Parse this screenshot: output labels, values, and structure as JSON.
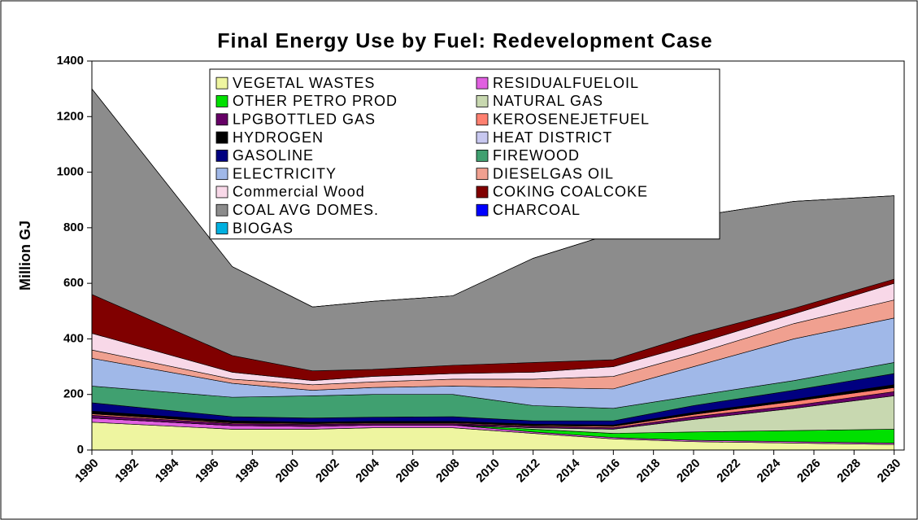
{
  "chart_data": {
    "type": "stacked-area",
    "title": "Final Energy Use by Fuel: Redevelopment Case",
    "y_label": "Million GJ",
    "x": [
      1990,
      1997,
      2001,
      2004,
      2008,
      2012,
      2016,
      2020,
      2025,
      2030
    ],
    "xlim": [
      1990,
      2030.5
    ],
    "xticks": [
      1990,
      1992,
      1994,
      1996,
      1998,
      2000,
      2002,
      2004,
      2006,
      2008,
      2010,
      2012,
      2014,
      2016,
      2018,
      2020,
      2022,
      2024,
      2026,
      2028,
      2030
    ],
    "ylim": [
      0,
      1400
    ],
    "yticks": [
      0,
      200,
      400,
      600,
      800,
      1000,
      1200,
      1400
    ],
    "series": [
      {
        "name": "VEGETAL WASTES",
        "color": "#eef5a0",
        "values": [
          100,
          75,
          75,
          80,
          80,
          60,
          40,
          30,
          25,
          20
        ]
      },
      {
        "name": "RESIDUALFUELOIL",
        "color": "#e060e0",
        "values": [
          15,
          13,
          10,
          10,
          10,
          5,
          5,
          5,
          5,
          5
        ]
      },
      {
        "name": "OTHER PETRO PROD",
        "color": "#00e000",
        "values": [
          0,
          0,
          0,
          0,
          0,
          10,
          15,
          30,
          40,
          50
        ]
      },
      {
        "name": "NATURAL GAS",
        "color": "#c8d8b0",
        "values": [
          0,
          0,
          0,
          0,
          0,
          5,
          15,
          45,
          80,
          120
        ]
      },
      {
        "name": "LPGBOTTLED GAS",
        "color": "#660066",
        "values": [
          10,
          7,
          7,
          5,
          5,
          5,
          5,
          10,
          10,
          15
        ]
      },
      {
        "name": "KEROSENEJETFUEL",
        "color": "#ff8070",
        "values": [
          5,
          3,
          3,
          3,
          3,
          3,
          5,
          8,
          15,
          15
        ]
      },
      {
        "name": "HYDROGEN",
        "color": "#000000",
        "values": [
          10,
          7,
          5,
          5,
          5,
          5,
          5,
          7,
          7,
          10
        ]
      },
      {
        "name": "HEAT DISTRICT",
        "color": "#c8c8f0",
        "values": [
          0,
          0,
          0,
          0,
          0,
          0,
          0,
          0,
          0,
          0
        ]
      },
      {
        "name": "GASOLINE",
        "color": "#000080",
        "values": [
          30,
          15,
          15,
          15,
          17,
          12,
          15,
          25,
          33,
          40
        ]
      },
      {
        "name": "FIREWOOD",
        "color": "#40a070",
        "values": [
          60,
          70,
          80,
          82,
          80,
          55,
          45,
          35,
          35,
          40
        ]
      },
      {
        "name": "ELECTRICITY",
        "color": "#a0b8e8",
        "values": [
          100,
          50,
          20,
          25,
          30,
          65,
          70,
          105,
          150,
          160
        ]
      },
      {
        "name": "DIESELGAS OIL",
        "color": "#f0a090",
        "values": [
          30,
          15,
          20,
          20,
          25,
          30,
          45,
          45,
          55,
          65
        ]
      },
      {
        "name": "Commercial Wood",
        "color": "#f8d8e8",
        "values": [
          60,
          25,
          15,
          20,
          20,
          25,
          35,
          35,
          35,
          60
        ]
      },
      {
        "name": "COKING COALCOKE",
        "color": "#800000",
        "values": [
          140,
          60,
          35,
          25,
          30,
          35,
          25,
          35,
          20,
          15
        ]
      },
      {
        "name": "COAL AVG DOMES.",
        "color": "#8c8c8c",
        "values": [
          740,
          320,
          230,
          245,
          250,
          375,
          455,
          425,
          385,
          300
        ]
      },
      {
        "name": "CHARCOAL",
        "color": "#0000ff",
        "values": [
          0,
          0,
          0,
          0,
          0,
          0,
          0,
          0,
          0,
          0
        ]
      },
      {
        "name": "BIOGAS",
        "color": "#00b0e0",
        "values": [
          0,
          0,
          0,
          0,
          0,
          0,
          0,
          0,
          0,
          0
        ]
      }
    ]
  }
}
